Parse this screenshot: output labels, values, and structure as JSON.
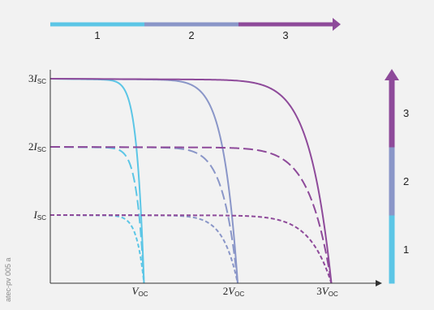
{
  "watermark": "atec-pv 005 a",
  "chart_data": {
    "type": "line",
    "title": "",
    "xlabel": "",
    "ylabel": "",
    "x_ticks": [
      {
        "coef": "",
        "symbol": "V",
        "sub": "oc",
        "value": 1
      },
      {
        "coef": "2",
        "symbol": "V",
        "sub": "oc",
        "value": 2
      },
      {
        "coef": "3",
        "symbol": "V",
        "sub": "oc",
        "value": 3
      }
    ],
    "y_ticks": [
      {
        "coef": "",
        "symbol": "I",
        "sub": "sc",
        "value": 1
      },
      {
        "coef": "2",
        "symbol": "I",
        "sub": "sc",
        "value": 2
      },
      {
        "coef": "3",
        "symbol": "I",
        "sub": "sc",
        "value": 3
      }
    ],
    "xlim": [
      0,
      3.45
    ],
    "ylim": [
      0,
      3.2
    ],
    "top_bar": {
      "labels": [
        "1",
        "2",
        "3"
      ],
      "colors": [
        "#5cc6e6",
        "#8a96c8",
        "#8e4a9a"
      ]
    },
    "right_bar": {
      "labels": [
        "1",
        "2",
        "3"
      ],
      "colors": [
        "#5cc6e6",
        "#8a96c8",
        "#8e4a9a"
      ]
    },
    "series": [
      {
        "cells_series": 1,
        "cells_parallel": 3,
        "color": "#5cc6e6",
        "dash": "solid"
      },
      {
        "cells_series": 2,
        "cells_parallel": 3,
        "color": "#8a96c8",
        "dash": "solid"
      },
      {
        "cells_series": 3,
        "cells_parallel": 3,
        "color": "#8e4a9a",
        "dash": "solid"
      },
      {
        "cells_series": 1,
        "cells_parallel": 2,
        "color": "#5cc6e6",
        "dash": "long"
      },
      {
        "cells_series": 2,
        "cells_parallel": 2,
        "color": "#8a96c8",
        "dash": "long"
      },
      {
        "cells_series": 3,
        "cells_parallel": 2,
        "color": "#8e4a9a",
        "dash": "long"
      },
      {
        "cells_series": 1,
        "cells_parallel": 1,
        "color": "#5cc6e6",
        "dash": "short"
      },
      {
        "cells_series": 2,
        "cells_parallel": 1,
        "color": "#8a96c8",
        "dash": "short"
      },
      {
        "cells_series": 3,
        "cells_parallel": 1,
        "color": "#8e4a9a",
        "dash": "short"
      }
    ]
  }
}
